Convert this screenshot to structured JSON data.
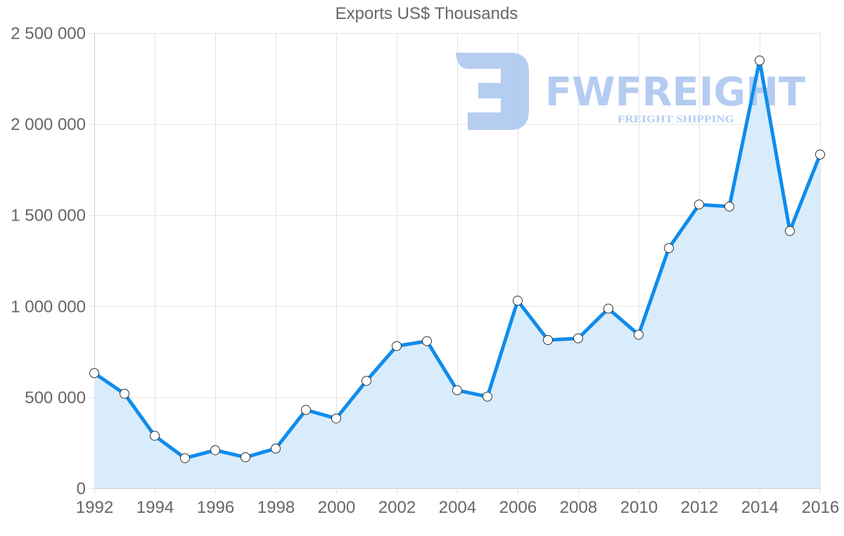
{
  "chart_data": {
    "type": "line",
    "title": "Exports US$ Thousands",
    "xlabel": "",
    "ylabel": "",
    "x": [
      1992,
      1993,
      1994,
      1995,
      1996,
      1997,
      1998,
      1999,
      2000,
      2001,
      2002,
      2003,
      2004,
      2005,
      2006,
      2007,
      2008,
      2009,
      2010,
      2011,
      2012,
      2013,
      2014,
      2015,
      2016
    ],
    "series": [
      {
        "name": "Exports US$ Thousands",
        "values": [
          632000,
          519000,
          288000,
          165000,
          209000,
          170000,
          218000,
          430000,
          383000,
          590000,
          781000,
          808000,
          538000,
          503000,
          1030000,
          814000,
          823000,
          986000,
          843000,
          1319000,
          1558000,
          1547000,
          2349000,
          1413000,
          1833000
        ],
        "fill": true
      }
    ],
    "ylim": [
      0,
      2500000
    ],
    "xlim": [
      1992,
      2016
    ],
    "y_ticks": [
      "0",
      "500 000",
      "1 000 000",
      "1 500 000",
      "2 000 000",
      "2 500 000"
    ],
    "x_ticks": [
      "1992",
      "1994",
      "1996",
      "1998",
      "2000",
      "2002",
      "2004",
      "2006",
      "2008",
      "2010",
      "2012",
      "2014",
      "2016"
    ],
    "grid": true,
    "legend": "none"
  },
  "colors": {
    "line": "#0f8ceb",
    "fill": "#d9ecfc",
    "grid": "#e3e3e3",
    "text": "#666666",
    "watermark": "#a9c4f0"
  },
  "watermark": {
    "brand": "FWFREIGHT",
    "tagline": "FREIGHT SHIPPING"
  }
}
